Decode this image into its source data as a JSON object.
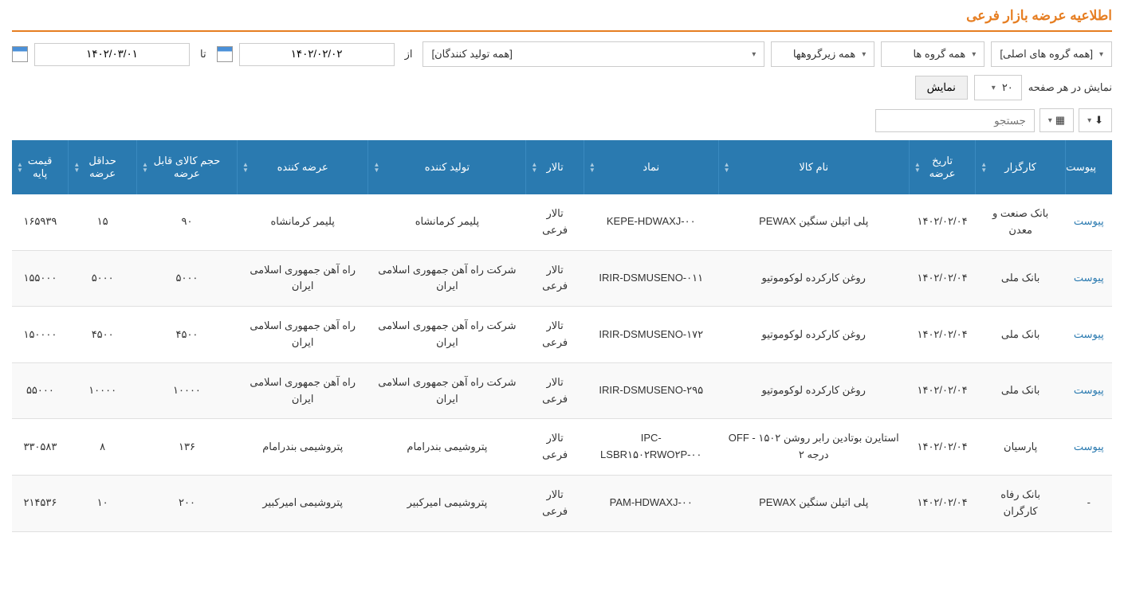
{
  "page_title": "اطلاعیه عرضه بازار فرعی",
  "filters": {
    "main_groups": "[همه گروه های اصلی]",
    "groups": "همه گروه ها",
    "subgroups": "همه زیرگروهها",
    "producers": "[همه تولید کنندگان]",
    "from_label": "از",
    "from_date": "۱۴۰۲/۰۲/۰۲",
    "to_label": "تا",
    "to_date": "۱۴۰۲/۰۳/۰۱"
  },
  "display": {
    "per_page_label": "نمایش در هر صفحه",
    "per_page_value": "۲۰",
    "show_button": "نمایش"
  },
  "search_placeholder": "جستجو",
  "columns": [
    "پیوست",
    "کارگزار",
    "تاریخ عرضه",
    "نام کالا",
    "نماد",
    "تالار",
    "تولید کننده",
    "عرضه کننده",
    "حجم کالای قابل عرضه",
    "حداقل عرضه",
    "قیمت پایه"
  ],
  "attachment_label": "پیوست",
  "rows": [
    {
      "attach": true,
      "broker": "بانک صنعت و معدن",
      "date": "۱۴۰۲/۰۲/۰۴",
      "product": "پلی اتیلن سنگین PEWAX",
      "symbol": "KEPE-HDWAXJ-۰۰",
      "hall": "تالار فرعی",
      "producer": "پلیمر کرمانشاه",
      "supplier": "پلیمر کرمانشاه",
      "volume": "۹۰",
      "min": "۱۵",
      "price": "۱۶۵۹۳۹"
    },
    {
      "attach": true,
      "broker": "بانک ملی",
      "date": "۱۴۰۲/۰۲/۰۴",
      "product": "روغن کارکرده لوکوموتیو",
      "symbol": "IRIR-DSMUSENO-۰۱۱",
      "hall": "تالار فرعی",
      "producer": "شرکت راه آهن جمهوری اسلامی ایران",
      "supplier": "راه آهن جمهوری اسلامی ایران",
      "volume": "۵۰۰۰",
      "min": "۵۰۰۰",
      "price": "۱۵۵۰۰۰"
    },
    {
      "attach": true,
      "broker": "بانک ملی",
      "date": "۱۴۰۲/۰۲/۰۴",
      "product": "روغن کارکرده لوکوموتیو",
      "symbol": "IRIR-DSMUSENO-۱۷۲",
      "hall": "تالار فرعی",
      "producer": "شرکت راه آهن جمهوری اسلامی ایران",
      "supplier": "راه آهن جمهوری اسلامی ایران",
      "volume": "۴۵۰۰",
      "min": "۴۵۰۰",
      "price": "۱۵۰۰۰۰"
    },
    {
      "attach": true,
      "broker": "بانک ملی",
      "date": "۱۴۰۲/۰۲/۰۴",
      "product": "روغن کارکرده لوکوموتیو",
      "symbol": "IRIR-DSMUSENO-۲۹۵",
      "hall": "تالار فرعی",
      "producer": "شرکت راه آهن جمهوری اسلامی ایران",
      "supplier": "راه آهن جمهوری اسلامی ایران",
      "volume": "۱۰۰۰۰",
      "min": "۱۰۰۰۰",
      "price": "۵۵۰۰۰"
    },
    {
      "attach": true,
      "broker": "پارسیان",
      "date": "۱۴۰۲/۰۲/۰۴",
      "product": "استایرن بوتادین رابر روشن ۱۵۰۲ - OFF درجه ۲",
      "symbol": "IPC-LSBR۱۵۰۲RWO۲P-۰۰",
      "hall": "تالار فرعی",
      "producer": "پتروشیمی بندرامام",
      "supplier": "پتروشیمی بندرامام",
      "volume": "۱۳۶",
      "min": "۸",
      "price": "۳۳۰۵۸۳"
    },
    {
      "attach": false,
      "broker": "بانک رفاه کارگران",
      "date": "۱۴۰۲/۰۲/۰۴",
      "product": "پلی اتیلن سنگین PEWAX",
      "symbol": "PAM-HDWAXJ-۰۰",
      "hall": "تالار فرعی",
      "producer": "پتروشیمی امیرکبیر",
      "supplier": "پتروشیمی امیرکبیر",
      "volume": "۲۰۰",
      "min": "۱۰",
      "price": "۲۱۴۵۳۶"
    }
  ]
}
